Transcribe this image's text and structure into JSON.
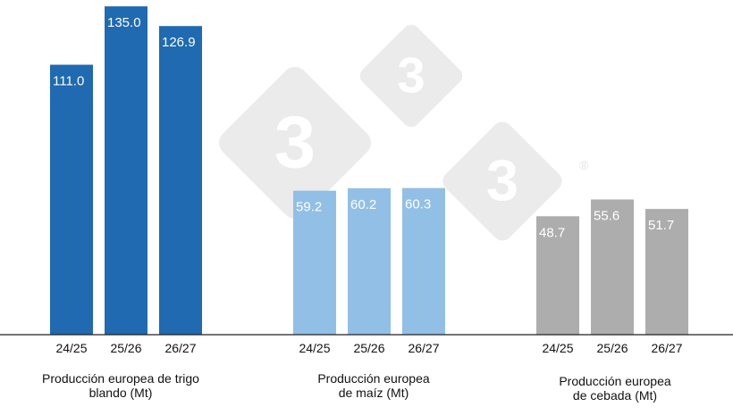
{
  "chart_data": {
    "type": "bar",
    "ylim": [
      0,
      140
    ],
    "grid": false,
    "groups": [
      {
        "caption_lines": [
          "Producción europea de trigo",
          "blando (Mt)"
        ],
        "color": "#1f6ab0",
        "categories": [
          "24/25",
          "25/26",
          "26/27"
        ],
        "values": [
          111.0,
          135.0,
          126.9
        ],
        "value_labels": [
          "111.0",
          "135.0",
          "126.9"
        ]
      },
      {
        "caption_lines": [
          "Producción europea",
          "de maíz (Mt)"
        ],
        "color": "#92bfe6",
        "categories": [
          "24/25",
          "25/26",
          "26/27"
        ],
        "values": [
          59.2,
          60.2,
          60.3
        ],
        "value_labels": [
          "59.2",
          "60.2",
          "60.3"
        ]
      },
      {
        "caption_lines": [
          "Producción europea",
          "de cebada (Mt)"
        ],
        "color": "#adadad",
        "categories": [
          "24/25",
          "25/26",
          "26/27"
        ],
        "values": [
          48.7,
          55.6,
          51.7
        ],
        "value_labels": [
          "48.7",
          "55.6",
          "51.7"
        ]
      }
    ]
  },
  "watermark": {
    "glyph": "3",
    "registered_mark": "®",
    "color": "#ebebeb"
  }
}
